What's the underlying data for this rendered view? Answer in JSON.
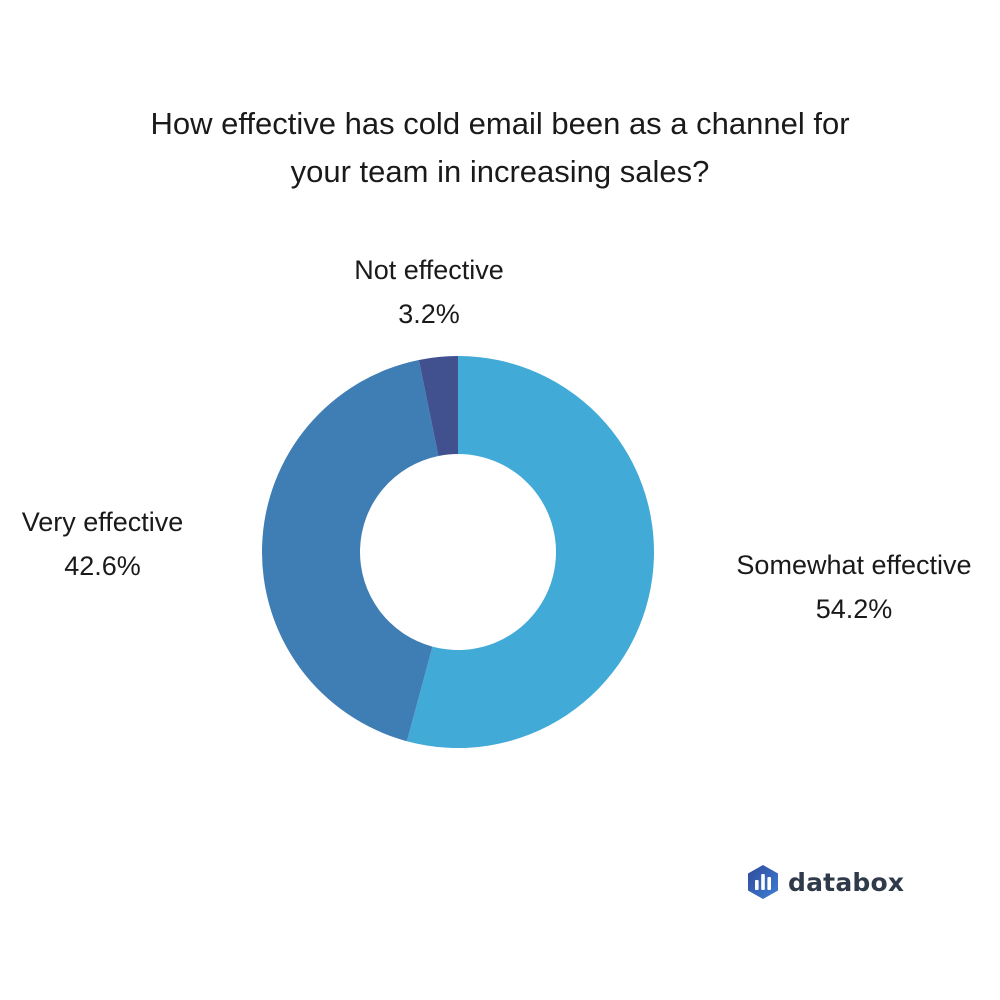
{
  "chart_data": {
    "type": "pie",
    "title_lines": [
      "How effective has cold email been as a channel for",
      "your team in increasing sales?"
    ],
    "slices": [
      {
        "name": "Somewhat effective",
        "label": "54.2%",
        "value": 54.2,
        "color": "#41aad6"
      },
      {
        "name": "Very effective",
        "label": "42.6%",
        "value": 42.6,
        "color": "#3f7db5"
      },
      {
        "name": "Not effective",
        "label": "3.2%",
        "value": 3.2,
        "color": "#41508f"
      }
    ],
    "donut": true,
    "start": "top",
    "direction": "clockwise"
  },
  "brand": {
    "name": "databox",
    "colors": [
      "#2f4a9a",
      "#3e7fd6"
    ]
  }
}
